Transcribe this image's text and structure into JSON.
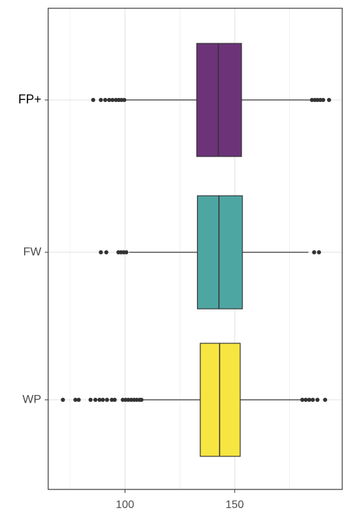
{
  "chart_data": {
    "type": "boxplot",
    "orientation": "horizontal",
    "categories": [
      "FP+",
      "FW",
      "WP"
    ],
    "xlim": [
      65,
      199
    ],
    "xticks": [
      100,
      150
    ],
    "x_minor_grid": [
      75,
      125,
      175
    ],
    "grid": true,
    "boxes": [
      {
        "color": "#6c3379",
        "min": 100.6,
        "q1": 132.7,
        "median": 142.5,
        "q3": 153.1,
        "max": 184.3,
        "outliers": [
          85.5,
          89,
          91,
          92.8,
          94.3,
          95.9,
          97.2,
          98.4,
          99.7,
          185.2,
          186.5,
          187.7,
          189,
          190.3,
          193
        ]
      },
      {
        "color": "#4ea6a3",
        "min": 101.9,
        "q1": 133,
        "median": 142.8,
        "q3": 153.5,
        "max": 183.6,
        "outliers": [
          89,
          91.5,
          97,
          98.2,
          99.4,
          100.6,
          186.2,
          188.4
        ]
      },
      {
        "color": "#f7e541",
        "min": 108.2,
        "q1": 134.3,
        "median": 143.1,
        "q3": 152.5,
        "max": 180.2,
        "outliers": [
          71.7,
          77.4,
          78.9,
          84.3,
          86.5,
          88.4,
          89.9,
          91.8,
          94,
          95.3,
          99,
          100.3,
          101.5,
          102.8,
          104.1,
          105.3,
          106.6,
          107.5,
          180.8,
          182.4,
          184,
          185.6,
          187.7,
          191.2
        ]
      }
    ]
  }
}
